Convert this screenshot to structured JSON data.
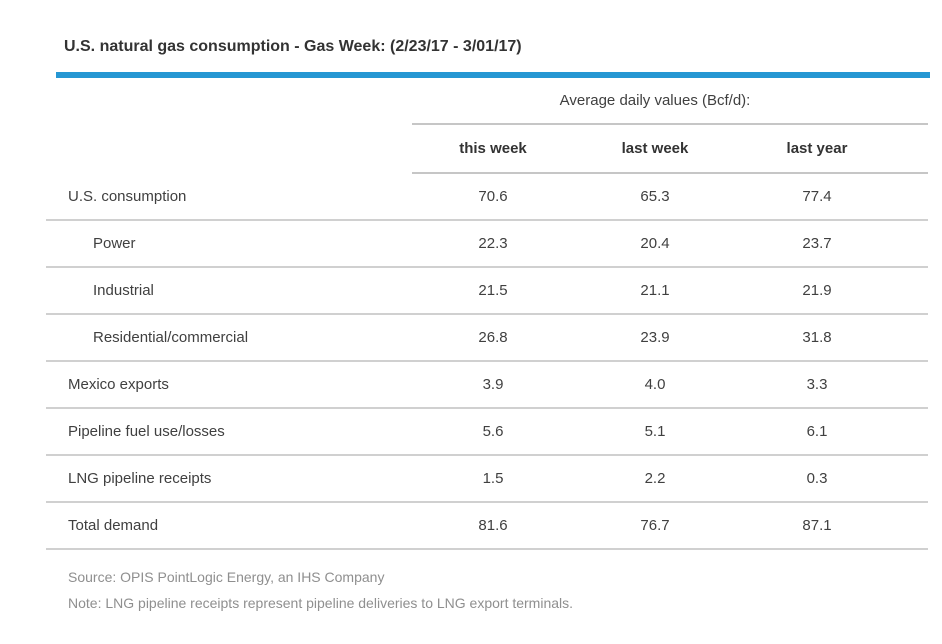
{
  "title": "U.S. natural gas consumption - Gas Week: (2/23/17 - 3/01/17)",
  "colors": {
    "accent_bar": "#2697d3",
    "rule_gray": "#d0d0d0",
    "text_dark": "#333333",
    "text_body": "#404040",
    "text_muted": "#8f8f8f"
  },
  "table": {
    "spanner": "Average daily values (Bcf/d):",
    "columns": [
      "this week",
      "last week",
      "last year"
    ],
    "rows": [
      {
        "label": "U.S. consumption",
        "values": [
          "70.6",
          "65.3",
          "77.4"
        ]
      },
      {
        "label": "Power",
        "values": [
          "22.3",
          "20.4",
          "23.7"
        ]
      },
      {
        "label": "Industrial",
        "values": [
          "21.5",
          "21.1",
          "21.9"
        ]
      },
      {
        "label": "Residential/commercial",
        "values": [
          "26.8",
          "23.9",
          "31.8"
        ]
      },
      {
        "label": "Mexico exports",
        "values": [
          "3.9",
          "4.0",
          "3.3"
        ]
      },
      {
        "label": "Pipeline fuel use/losses",
        "values": [
          "5.6",
          "5.1",
          "6.1"
        ]
      },
      {
        "label": "LNG pipeline receipts",
        "values": [
          "1.5",
          "2.2",
          "0.3"
        ]
      },
      {
        "label": "Total demand",
        "values": [
          "81.6",
          "76.7",
          "87.1"
        ]
      }
    ]
  },
  "footer": {
    "source": "Source: OPIS PointLogic Energy, an IHS Company",
    "note": "Note: LNG pipeline receipts represent pipeline deliveries to LNG export terminals."
  },
  "chart_data": {
    "type": "table",
    "title": "U.S. natural gas consumption - Gas Week: (2/23/17 - 3/01/17)",
    "group_header": "Average daily values (Bcf/d):",
    "columns": [
      "this week",
      "last week",
      "last year"
    ],
    "rows": [
      {
        "label": "U.S. consumption",
        "indent": 0,
        "values": [
          70.6,
          65.3,
          77.4
        ]
      },
      {
        "label": "Power",
        "indent": 1,
        "values": [
          22.3,
          20.4,
          23.7
        ]
      },
      {
        "label": "Industrial",
        "indent": 1,
        "values": [
          21.5,
          21.1,
          21.9
        ]
      },
      {
        "label": "Residential/commercial",
        "indent": 1,
        "values": [
          26.8,
          23.9,
          31.8
        ]
      },
      {
        "label": "Mexico exports",
        "indent": 0,
        "values": [
          3.9,
          4.0,
          3.3
        ]
      },
      {
        "label": "Pipeline fuel use/losses",
        "indent": 0,
        "values": [
          5.6,
          5.1,
          6.1
        ]
      },
      {
        "label": "LNG pipeline receipts",
        "indent": 0,
        "values": [
          1.5,
          2.2,
          0.3
        ]
      },
      {
        "label": "Total demand",
        "indent": 0,
        "values": [
          81.6,
          76.7,
          87.1
        ]
      }
    ],
    "units": "Bcf/d",
    "source": "Source: OPIS PointLogic Energy, an IHS Company",
    "note": "Note: LNG pipeline receipts represent pipeline deliveries to LNG export terminals."
  }
}
